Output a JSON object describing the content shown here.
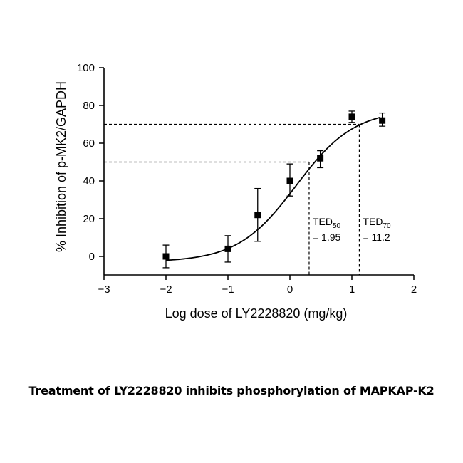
{
  "caption": "Treatment of LY2228820 inhibits phosphorylation of MAPKAP-K2",
  "chart_data": {
    "type": "scatter",
    "xlabel": "Log dose of LY2228820 (mg/kg)",
    "ylabel": "% Inhibition of p-MK2/GAPDH",
    "xlim": [
      -3,
      2
    ],
    "ylim": [
      -10,
      100
    ],
    "xticks": [
      -3,
      -2,
      -1,
      0,
      1,
      2
    ],
    "xtick_labels": [
      "−3",
      "−2",
      "−1",
      "0",
      "1",
      "2"
    ],
    "yticks": [
      0,
      20,
      40,
      60,
      80,
      100
    ],
    "ytick_labels": [
      "0",
      "20",
      "40",
      "60",
      "80",
      "100"
    ],
    "grid": false,
    "points": [
      {
        "x": -2.0,
        "y": 0,
        "err_low": -6,
        "err_high": 6
      },
      {
        "x": -1.0,
        "y": 4,
        "err_low": -3,
        "err_high": 11
      },
      {
        "x": -0.52,
        "y": 22,
        "err_low": 8,
        "err_high": 36
      },
      {
        "x": 0.0,
        "y": 40,
        "err_low": 32,
        "err_high": 49
      },
      {
        "x": 0.49,
        "y": 52,
        "err_low": 47,
        "err_high": 56
      },
      {
        "x": 1.0,
        "y": 74,
        "err_low": 71,
        "err_high": 77
      },
      {
        "x": 1.49,
        "y": 72,
        "err_low": 69,
        "err_high": 76
      }
    ],
    "fit_curve": {
      "type": "sigmoid",
      "bottom": -3,
      "top": 78,
      "log_ec50": 0.1,
      "hill": 0.92,
      "x_range": [
        -2,
        1.45
      ]
    },
    "reference_lines": [
      {
        "label_main": "TED",
        "label_sub": "50",
        "value_text": "= 1.95",
        "y": 50,
        "x": 0.31
      },
      {
        "label_main": "TED",
        "label_sub": "70",
        "value_text": "= 11.2",
        "y": 70,
        "x": 1.12
      }
    ]
  },
  "colors": {
    "marks": "#000000",
    "background": "#ffffff"
  }
}
